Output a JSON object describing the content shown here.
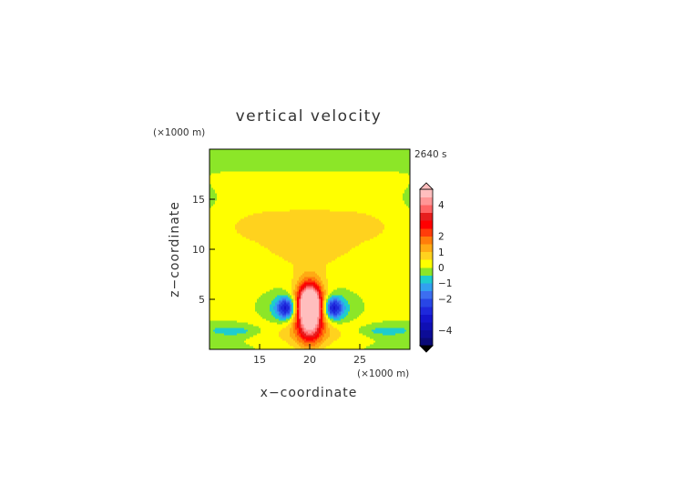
{
  "chart_data": {
    "type": "heatmap",
    "title": "vertical velocity",
    "xlabel": "x−coordinate",
    "ylabel": "z−coordinate",
    "x_unit": "(×1000 m)",
    "y_unit": "(×1000 m)",
    "time_label": "2640 s",
    "xlim": [
      10,
      30
    ],
    "ylim": [
      0,
      20
    ],
    "x_ticks": [
      {
        "value": 15,
        "label": "15"
      },
      {
        "value": 20,
        "label": "20"
      },
      {
        "value": 25,
        "label": "25"
      }
    ],
    "y_ticks": [
      {
        "value": 5,
        "label": "5"
      },
      {
        "value": 10,
        "label": "10"
      },
      {
        "value": 15,
        "label": "15"
      }
    ],
    "colorbar": {
      "levels": [
        -5,
        -4.5,
        -4,
        -3.5,
        -3,
        -2.5,
        -2,
        -1.5,
        -1,
        -0.5,
        0,
        0.5,
        1,
        1.5,
        2,
        2.5,
        3,
        3.5,
        4,
        4.5,
        5
      ],
      "colors": [
        "#0a0a78",
        "#0c0c96",
        "#0f0fb4",
        "#1414cc",
        "#1e28dc",
        "#2846e6",
        "#3c6ef0",
        "#32a0f0",
        "#1ecdcd",
        "#8ce628",
        "#ffff00",
        "#ffd21e",
        "#ffaa14",
        "#ff7d0a",
        "#ff3c0a",
        "#ff0000",
        "#e61e1e",
        "#ff6464",
        "#ff9696",
        "#ffbebe"
      ],
      "ticks": [
        {
          "value": 4,
          "label": "4"
        },
        {
          "value": 2,
          "label": "2"
        },
        {
          "value": 1,
          "label": "1"
        },
        {
          "value": 0,
          "label": "0"
        },
        {
          "value": -1,
          "label": "−1"
        },
        {
          "value": -2,
          "label": "−2"
        },
        {
          "value": -4,
          "label": "−4"
        }
      ],
      "extend": "both"
    },
    "features": [
      {
        "name": "updraft core",
        "x": 20,
        "z": 4.5,
        "w": 5.0,
        "rx": 1.1,
        "rz": 1.9
      },
      {
        "name": "updraft ring",
        "x": 20,
        "z": 4.6,
        "w": 2.4,
        "rx": 1.5,
        "rz": 2.5
      },
      {
        "name": "updraft stem",
        "x": 20,
        "z": 2.4,
        "w": 2.0,
        "rx": 1.3,
        "rz": 2.4
      },
      {
        "name": "low-level updraft",
        "x": 20,
        "z": 1.8,
        "w": 1.0,
        "rx": 4.0,
        "rz": 1.5
      },
      {
        "name": "left downdraft",
        "x": 17.7,
        "z": 4.2,
        "w": -2.5,
        "rx": 0.9,
        "rz": 1.0
      },
      {
        "name": "right downdraft",
        "x": 22.3,
        "z": 4.2,
        "w": -2.5,
        "rx": 0.9,
        "rz": 1.0
      },
      {
        "name": "left downdraft halo",
        "x": 17.3,
        "z": 4.0,
        "w": -1.0,
        "rx": 1.5,
        "rz": 1.4
      },
      {
        "name": "right downdraft halo",
        "x": 22.7,
        "z": 4.0,
        "w": -1.0,
        "rx": 1.5,
        "rz": 1.4
      },
      {
        "name": "left boundary downdraft",
        "x": 12.2,
        "z": 1.9,
        "w": -0.9,
        "rx": 2.4,
        "rz": 0.5
      },
      {
        "name": "right boundary downdraft",
        "x": 27.8,
        "z": 1.9,
        "w": -0.9,
        "rx": 2.4,
        "rz": 0.5
      }
    ]
  }
}
